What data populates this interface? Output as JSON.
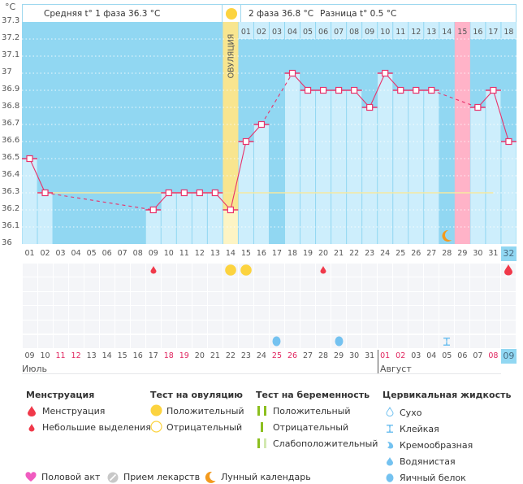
{
  "chart_data": {
    "type": "line",
    "title": "",
    "ylabel": "°C",
    "ylim": [
      36,
      37.3
    ],
    "yticks": [
      "37.3",
      "37.2",
      "37.1",
      "37",
      "36.9",
      "36.8",
      "36.7",
      "36.6",
      "36.5",
      "36.4",
      "36.3",
      "36.2",
      "36.1",
      "36"
    ],
    "cycle_days": [
      "01",
      "02",
      "03",
      "04",
      "05",
      "06",
      "07",
      "08",
      "09",
      "10",
      "11",
      "12",
      "13",
      "14",
      "15",
      "16",
      "17",
      "18",
      "19",
      "20",
      "21",
      "22",
      "23",
      "24",
      "25",
      "26",
      "27",
      "28",
      "29",
      "30",
      "31",
      "32"
    ],
    "phase2_days": [
      "01",
      "02",
      "03",
      "04",
      "05",
      "06",
      "07",
      "08",
      "09",
      "10",
      "11",
      "12",
      "13",
      "14",
      "15",
      "16",
      "17",
      "18"
    ],
    "temperatures": [
      36.5,
      36.3,
      null,
      null,
      null,
      null,
      null,
      null,
      36.2,
      36.3,
      36.3,
      36.3,
      36.3,
      36.2,
      36.6,
      36.7,
      null,
      37.0,
      36.9,
      36.9,
      36.9,
      36.9,
      36.8,
      37.0,
      36.9,
      36.9,
      36.9,
      null,
      null,
      36.8,
      36.9,
      36.6
    ],
    "coverline": 36.3,
    "ovulation_day": 14,
    "highlight_pink_day": 29,
    "selected_day": 32,
    "moon_day": 28,
    "calendar_dates": [
      {
        "d": "09",
        "red": false
      },
      {
        "d": "10",
        "red": false
      },
      {
        "d": "11",
        "red": true
      },
      {
        "d": "12",
        "red": true
      },
      {
        "d": "13",
        "red": false
      },
      {
        "d": "14",
        "red": false
      },
      {
        "d": "15",
        "red": false
      },
      {
        "d": "16",
        "red": false
      },
      {
        "d": "17",
        "red": false
      },
      {
        "d": "18",
        "red": true
      },
      {
        "d": "19",
        "red": true
      },
      {
        "d": "20",
        "red": false
      },
      {
        "d": "21",
        "red": false
      },
      {
        "d": "22",
        "red": false
      },
      {
        "d": "23",
        "red": false
      },
      {
        "d": "24",
        "red": false
      },
      {
        "d": "25",
        "red": true
      },
      {
        "d": "26",
        "red": true
      },
      {
        "d": "27",
        "red": false
      },
      {
        "d": "28",
        "red": false
      },
      {
        "d": "29",
        "red": false
      },
      {
        "d": "30",
        "red": false
      },
      {
        "d": "31",
        "red": false
      },
      {
        "d": "01",
        "red": true
      },
      {
        "d": "02",
        "red": true
      },
      {
        "d": "03",
        "red": false
      },
      {
        "d": "04",
        "red": false
      },
      {
        "d": "05",
        "red": false
      },
      {
        "d": "06",
        "red": false
      },
      {
        "d": "07",
        "red": false
      },
      {
        "d": "08",
        "red": true
      },
      {
        "d": "09",
        "red": false
      }
    ],
    "markers": {
      "menstruation_light": [
        9,
        20
      ],
      "menstruation": [
        32
      ],
      "ovulation_test_positive": [
        14,
        15
      ],
      "cervical_egg_white": [
        17,
        21
      ],
      "cervical_sticky": [
        28
      ]
    }
  },
  "header": {
    "unit": "°C",
    "phase1": "Средняя t° 1 фаза 36.3 °C",
    "phase2": "2 фаза 36.8 °C",
    "diff": "Разница t° 0.5 °C",
    "ovulation_label": "ОВУЛЯЦИЯ"
  },
  "months": {
    "first": "Июль",
    "second": "Август"
  },
  "colors": {
    "plot_bg": "#91d7f2",
    "bar": "#cdeefc",
    "line": "#e8336b",
    "coverline": "#f5e9a0",
    "ovulation": "#f8e58f",
    "pink_day": "#ffb3c8",
    "sun": "#fcd33f",
    "blood": "#f0394a",
    "cervical": "#74c2f0",
    "moon": "#f39a1e",
    "preg_test": "#8cbf1f",
    "preg_test_faint": "#d2e8b0"
  },
  "legend": {
    "menstruation": {
      "title": "Менструация",
      "items": [
        "Менструация",
        "Небольшие выделения"
      ]
    },
    "ovulation_test": {
      "title": "Тест на овуляцию",
      "items": [
        "Положительный",
        "Отрицательный"
      ]
    },
    "pregnancy_test": {
      "title": "Тест на беременность",
      "items": [
        "Положительный",
        "Отрицательный",
        "Слабоположительный"
      ]
    },
    "cervical": {
      "title": "Цервикальная жидкость",
      "items": [
        "Сухо",
        "Клейкая",
        "Кремообразная",
        "Водянистая",
        "Яичный белок"
      ]
    },
    "bottom": [
      "Половой акт",
      "Прием лекарств",
      "Лунный календарь"
    ]
  }
}
